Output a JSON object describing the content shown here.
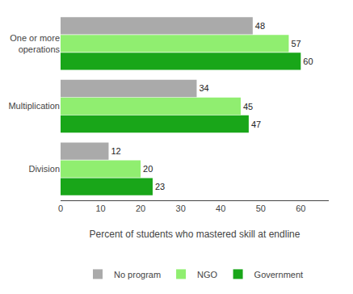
{
  "chart_data": {
    "type": "bar",
    "orientation": "horizontal",
    "categories": [
      "Division",
      "Multiplication",
      "One or more\noperations"
    ],
    "series": [
      {
        "name": "No program",
        "values": [
          12,
          34,
          48
        ],
        "color": "#aaaaaa"
      },
      {
        "name": "NGO",
        "values": [
          20,
          45,
          57
        ],
        "color": "#90ee70"
      },
      {
        "name": "Government",
        "values": [
          23,
          47,
          60
        ],
        "color": "#19a619"
      }
    ],
    "xlabel": "Percent of students who mastered skill at endline",
    "xlim": [
      0,
      67
    ],
    "xticks": [
      0,
      10,
      20,
      30,
      40,
      50,
      60
    ],
    "data_labels": true,
    "grid": false,
    "legend": "bottom"
  }
}
